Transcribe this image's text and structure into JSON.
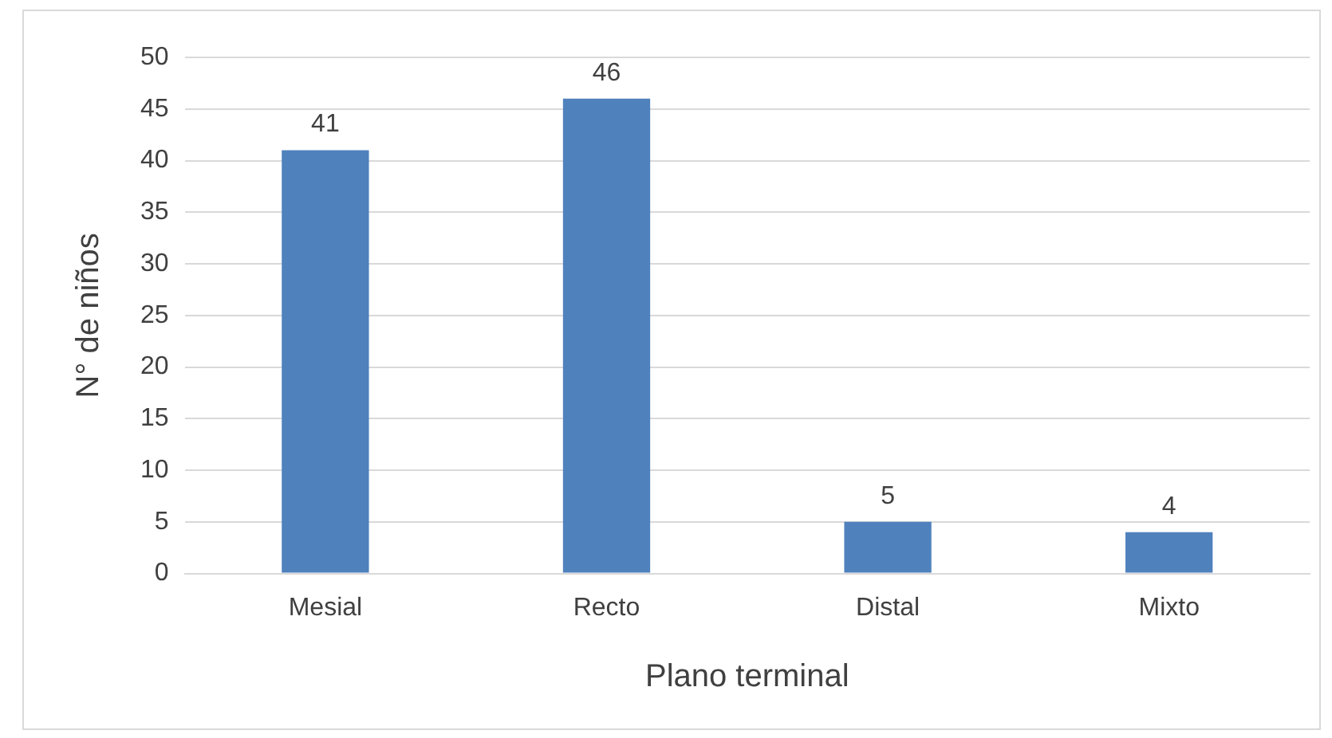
{
  "chart_data": {
    "type": "bar",
    "xlabel": "Plano terminal",
    "ylabel": "N° de niños",
    "categories": [
      "Mesial",
      "Recto",
      "Distal",
      "Mixto"
    ],
    "values": [
      41,
      46,
      5,
      4
    ],
    "color": "#4f81bd",
    "ylim": [
      0,
      50
    ],
    "yticks": [
      0,
      5,
      10,
      15,
      20,
      25,
      30,
      35,
      40,
      45,
      50
    ],
    "grid": "y",
    "data_labels": true
  }
}
